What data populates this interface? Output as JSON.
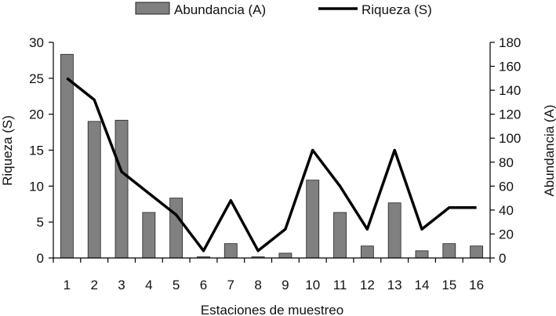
{
  "chart_data": {
    "type": "bar+line",
    "categories": [
      "1",
      "2",
      "3",
      "4",
      "5",
      "6",
      "7",
      "8",
      "9",
      "10",
      "11",
      "12",
      "13",
      "14",
      "15",
      "16"
    ],
    "series": [
      {
        "name": "Abundancia (A)",
        "kind": "bar",
        "axis": "right",
        "color": "#808080",
        "values": [
          170,
          114,
          115,
          38,
          50,
          1,
          12,
          1,
          4,
          65,
          38,
          10,
          46,
          6,
          12,
          10
        ]
      },
      {
        "name": "Riqueza (S)",
        "kind": "line",
        "axis": "left",
        "color": "#000000",
        "values": [
          25,
          22,
          12,
          9,
          6,
          1,
          8,
          1,
          4,
          15,
          10,
          4,
          15,
          4,
          7,
          7
        ]
      }
    ],
    "xlabel": "Estaciones de muestreo",
    "ylabel_left": "Riqueza (S)",
    "ylabel_right": "Abundancia (A)",
    "yleft_lim": [
      0,
      30
    ],
    "yleft_ticks": [
      "0",
      "5",
      "10",
      "15",
      "20",
      "25",
      "30"
    ],
    "yright_lim": [
      0,
      180
    ],
    "yright_ticks": [
      "0",
      "20",
      "40",
      "60",
      "80",
      "100",
      "120",
      "140",
      "160",
      "180"
    ],
    "legend_position": "top",
    "grid": false
  }
}
